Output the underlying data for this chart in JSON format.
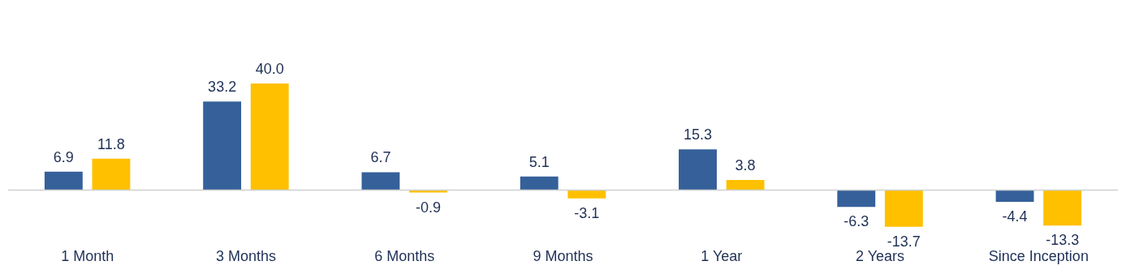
{
  "chart_data": {
    "type": "bar",
    "categories": [
      "1 Month",
      "3 Months",
      "6 Months",
      "9 Months",
      "1 Year",
      "2 Years",
      "Since Inception"
    ],
    "series": [
      {
        "color": "#35609a",
        "values": [
          6.9,
          33.2,
          6.7,
          5.1,
          15.3,
          -6.3,
          -4.4
        ],
        "value_labels": [
          "6.9",
          "33.2",
          "6.7",
          "5.1",
          "15.3",
          "-6.3",
          "-4.4"
        ]
      },
      {
        "color": "#ffc000",
        "values": [
          11.8,
          40,
          -0.9,
          -3.1,
          3.8,
          -13.7,
          -13.3
        ],
        "value_labels": [
          "11.8",
          "40.0",
          "-0.9",
          "-3.1",
          "3.8",
          "-13.7",
          "-13.3"
        ]
      }
    ],
    "legend": false,
    "grid": false
  }
}
